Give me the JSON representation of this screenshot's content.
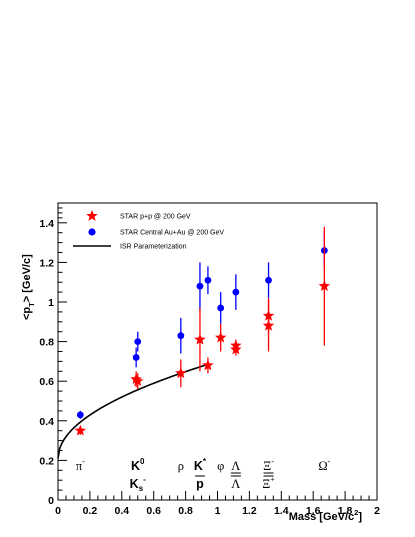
{
  "chart_data": {
    "type": "scatter",
    "xlabel": "Mass [GeV/c",
    "xlabel_sup": "2",
    "xlabel_close": "]",
    "ylabel": "<p",
    "ylabel_sub": "T",
    "ylabel_rest": "> [GeV/c]",
    "xlim": [
      0,
      2
    ],
    "ylim": [
      0,
      1.5
    ],
    "x_ticks": [
      {
        "v": 0,
        "label": "0"
      },
      {
        "v": 0.2,
        "label": "0.2"
      },
      {
        "v": 0.4,
        "label": "0.4"
      },
      {
        "v": 0.6,
        "label": "0.6"
      },
      {
        "v": 0.8,
        "label": "0.8"
      },
      {
        "v": 1,
        "label": "1"
      },
      {
        "v": 1.2,
        "label": "1.2"
      },
      {
        "v": 1.4,
        "label": "1.4"
      },
      {
        "v": 1.6,
        "label": "1.6"
      },
      {
        "v": 1.8,
        "label": "1.8"
      },
      {
        "v": 2,
        "label": "2"
      }
    ],
    "y_ticks": [
      {
        "v": 0,
        "label": "0"
      },
      {
        "v": 0.2,
        "label": "0.2"
      },
      {
        "v": 0.4,
        "label": "0.4"
      },
      {
        "v": 0.6,
        "label": "0.6"
      },
      {
        "v": 0.8,
        "label": "0.8"
      },
      {
        "v": 1,
        "label": "1"
      },
      {
        "v": 1.2,
        "label": "1.2"
      },
      {
        "v": 1.4,
        "label": "1.4"
      }
    ],
    "legend": {
      "placement": "top-left",
      "entries": [
        {
          "label": "STAR p+p @ 200 GeV",
          "marker": "star",
          "color": "#ff0000"
        },
        {
          "label": "STAR Central Au+Au @ 200 GeV",
          "marker": "circle",
          "color": "#0000ff"
        },
        {
          "label": "ISR Parameterization",
          "marker": "line",
          "color": "#000000"
        }
      ]
    },
    "series": [
      {
        "name": "STAR p+p @ 200 GeV",
        "color": "#ff0000",
        "marker": "star",
        "points": [
          {
            "x": 0.14,
            "y": 0.35,
            "err": 0.02
          },
          {
            "x": 0.49,
            "y": 0.61,
            "err": 0.04
          },
          {
            "x": 0.5,
            "y": 0.6,
            "err": 0.04
          },
          {
            "x": 0.77,
            "y": 0.64,
            "err": 0.07
          },
          {
            "x": 0.89,
            "y": 0.81,
            "err": 0.16
          },
          {
            "x": 0.94,
            "y": 0.68,
            "err": 0.04
          },
          {
            "x": 1.02,
            "y": 0.82,
            "err": 0.07
          },
          {
            "x": 1.115,
            "y": 0.78,
            "err": 0.03
          },
          {
            "x": 1.115,
            "y": 0.76,
            "err": 0.03
          },
          {
            "x": 1.32,
            "y": 0.93,
            "err": 0.09
          },
          {
            "x": 1.32,
            "y": 0.88,
            "err": 0.13
          },
          {
            "x": 1.67,
            "y": 1.08,
            "err": 0.3
          }
        ]
      },
      {
        "name": "STAR Central Au+Au @ 200 GeV",
        "color": "#0000ff",
        "marker": "circle",
        "points": [
          {
            "x": 0.14,
            "y": 0.43,
            "err": 0.02
          },
          {
            "x": 0.49,
            "y": 0.72,
            "err": 0.05
          },
          {
            "x": 0.5,
            "y": 0.8,
            "err": 0.05
          },
          {
            "x": 0.77,
            "y": 0.83,
            "err": 0.09
          },
          {
            "x": 0.89,
            "y": 1.08,
            "err": 0.12
          },
          {
            "x": 0.94,
            "y": 1.11,
            "err": 0.07
          },
          {
            "x": 1.02,
            "y": 0.97,
            "err": 0.08
          },
          {
            "x": 1.115,
            "y": 1.05,
            "err": 0.09
          },
          {
            "x": 1.32,
            "y": 1.11,
            "err": 0.09
          },
          {
            "x": 1.67,
            "y": 1.26,
            "err": 0.09
          }
        ]
      },
      {
        "name": "ISR Parameterization",
        "color": "#000000",
        "type": "line",
        "x_range": [
          0,
          0.94
        ],
        "formula": "0.21 + 0.49*sqrt(x)"
      }
    ],
    "particle_labels": [
      {
        "x": 0.14,
        "lines": [
          {
            "t": "π",
            "sup": "-"
          }
        ]
      },
      {
        "x": 0.5,
        "lines": [
          {
            "t": "K",
            "sup": "0"
          },
          {
            "t": "K",
            "sup": "-",
            "sub": "s"
          }
        ],
        "bold": true
      },
      {
        "x": 0.77,
        "lines": [
          {
            "t": "ρ"
          }
        ]
      },
      {
        "x": 0.89,
        "lines": [
          {
            "t": "K",
            "sup": "*"
          },
          {
            "t": "p",
            "over": true
          }
        ],
        "bold": true
      },
      {
        "x": 1.02,
        "lines": [
          {
            "t": "φ"
          }
        ]
      },
      {
        "x": 1.115,
        "lines": [
          {
            "t": "Λ",
            "under": true
          },
          {
            "t": "Λ",
            "over": true
          }
        ]
      },
      {
        "x": 1.32,
        "lines": [
          {
            "t": "Ξ",
            "sup": "-",
            "under": true
          },
          {
            "t": "Ξ",
            "sup": "+",
            "over": true
          }
        ]
      },
      {
        "x": 1.67,
        "lines": [
          {
            "t": "Ω",
            "sup": "-"
          }
        ]
      }
    ]
  }
}
